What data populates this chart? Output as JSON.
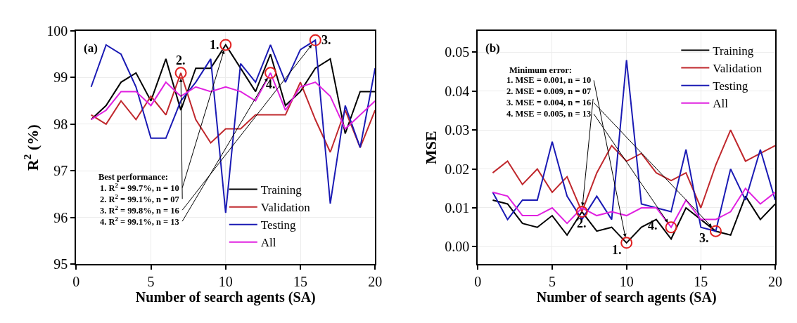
{
  "chart_data": [
    {
      "type": "line",
      "xlabel": "Number of search agents (SA)",
      "ylabel": "R$^{2}$ (%)",
      "xlim": [
        0,
        20
      ],
      "xticks": [
        0,
        5,
        10,
        15,
        20
      ],
      "ylim": [
        95,
        100
      ],
      "yticks": [
        95,
        96,
        97,
        98,
        99,
        100
      ],
      "grid": true,
      "legend": "bottom",
      "x": [
        1,
        2,
        3,
        4,
        5,
        6,
        7,
        8,
        9,
        10,
        11,
        12,
        13,
        14,
        15,
        16,
        17,
        18,
        19,
        20
      ],
      "series": [
        {
          "name": "Training",
          "color": "#000000",
          "values": [
            98.1,
            98.4,
            98.9,
            99.1,
            98.5,
            99.4,
            98.3,
            99.2,
            99.2,
            99.7,
            99.2,
            98.7,
            99.5,
            98.4,
            98.7,
            99.2,
            99.4,
            97.8,
            98.7,
            98.7
          ]
        },
        {
          "name": "Validation",
          "color": "#c0282d",
          "values": [
            98.2,
            98.0,
            98.5,
            98.1,
            98.6,
            98.2,
            99.1,
            98.1,
            97.6,
            97.9,
            97.9,
            98.2,
            98.2,
            98.2,
            98.9,
            98.1,
            97.4,
            98.3,
            97.5,
            98.3
          ]
        },
        {
          "name": "Testing",
          "color": "#1a1ab4",
          "values": [
            98.8,
            99.7,
            99.5,
            98.8,
            97.7,
            97.7,
            98.5,
            98.9,
            99.4,
            96.1,
            99.3,
            98.9,
            99.7,
            98.9,
            99.6,
            99.8,
            96.3,
            98.4,
            97.5,
            99.2
          ]
        },
        {
          "name": "All",
          "color": "#e020e0",
          "values": [
            98.1,
            98.3,
            98.7,
            98.7,
            98.4,
            98.9,
            98.6,
            98.8,
            98.7,
            98.8,
            98.7,
            98.5,
            99.1,
            98.3,
            98.8,
            98.9,
            98.6,
            97.9,
            98.2,
            98.5
          ]
        },
        {
          "type": "scatter",
          "color": "#e02020",
          "marker": "circle",
          "x": [
            10,
            7,
            16,
            13
          ],
          "values": [
            99.7,
            99.1,
            99.8,
            99.1
          ]
        }
      ],
      "annotations": [
        "(a)",
        "Best performance:",
        {
          "text": "1. R$^{2}$ = 99.7%, n = 10",
          "x": 10,
          "y": 99.7
        },
        {
          "text": "2. R$^{2}$ = 99.1%, n = 07",
          "x": 7,
          "y": 99.1
        },
        {
          "text": "3. R$^{2}$ = 99.8%, n = 16",
          "x": 16,
          "y": 99.8
        },
        {
          "text": "4. R$^{2}$ = 99.1%, n = 13",
          "x": 13,
          "y": 99.1
        },
        {
          "text": "1.",
          "x": 10,
          "y": 99.7
        },
        {
          "text": "2.",
          "x": 7,
          "y": 99.1
        },
        {
          "text": "3.",
          "x": 16,
          "y": 99.8
        },
        {
          "text": "4.",
          "x": 13,
          "y": 99.1
        }
      ]
    },
    {
      "type": "line",
      "xlabel": "Number of search agents (SA)",
      "ylabel": "MSE",
      "xlim": [
        0,
        20
      ],
      "xticks": [
        0,
        5,
        10,
        15,
        20
      ],
      "ylim": [
        -0.0045,
        0.0555
      ],
      "yticks": [
        {
          "value": 0,
          "label": "0.00"
        },
        {
          "value": 0.01,
          "label": "0.01"
        },
        {
          "value": 0.02,
          "label": "0.02"
        },
        {
          "value": 0.03,
          "label": "0.03"
        },
        {
          "value": 0.04,
          "label": "0.04"
        },
        {
          "value": 0.05,
          "label": "0.05"
        }
      ],
      "grid": true,
      "legend": "top right",
      "x": [
        1,
        2,
        3,
        4,
        5,
        6,
        7,
        8,
        9,
        10,
        11,
        12,
        13,
        14,
        15,
        16,
        17,
        18,
        19,
        20
      ],
      "series": [
        {
          "name": "Training",
          "color": "#000000",
          "values": [
            0.012,
            0.011,
            0.006,
            0.005,
            0.008,
            0.003,
            0.009,
            0.004,
            0.005,
            0.001,
            0.005,
            0.007,
            0.002,
            0.01,
            0.007,
            0.004,
            0.003,
            0.013,
            0.007,
            0.011
          ]
        },
        {
          "name": "Validation",
          "color": "#c0282d",
          "values": [
            0.019,
            0.022,
            0.016,
            0.02,
            0.014,
            0.018,
            0.009,
            0.019,
            0.026,
            0.022,
            0.024,
            0.019,
            0.017,
            0.019,
            0.01,
            0.021,
            0.03,
            0.022,
            0.024,
            0.026
          ]
        },
        {
          "name": "Testing",
          "color": "#1a1ab4",
          "values": [
            0.014,
            0.007,
            0.012,
            0.012,
            0.027,
            0.013,
            0.007,
            0.013,
            0.007,
            0.048,
            0.011,
            0.01,
            0.009,
            0.025,
            0.005,
            0.004,
            0.02,
            0.012,
            0.025,
            0.012
          ]
        },
        {
          "name": "All",
          "color": "#e020e0",
          "values": [
            0.014,
            0.013,
            0.008,
            0.008,
            0.01,
            0.006,
            0.01,
            0.008,
            0.009,
            0.008,
            0.01,
            0.01,
            0.005,
            0.012,
            0.007,
            0.007,
            0.009,
            0.015,
            0.011,
            0.014
          ]
        },
        {
          "type": "scatter",
          "color": "#e02020",
          "marker": "circle",
          "x": [
            10,
            7,
            16,
            13
          ],
          "values": [
            0.001,
            0.009,
            0.004,
            0.005
          ]
        }
      ],
      "annotations": [
        "(b)",
        "Minimum error:",
        {
          "text": "1. MSE = 0.001, n = 10",
          "x": 10,
          "y": 0.001
        },
        {
          "text": "2. MSE = 0.009, n = 07",
          "x": 7,
          "y": 0.009
        },
        {
          "text": "3. MSE = 0.004, n = 16",
          "x": 16,
          "y": 0.004
        },
        {
          "text": "4. MSE = 0.005, n = 13",
          "x": 13,
          "y": 0.005
        },
        {
          "text": "1.",
          "x": 10,
          "y": 0.001
        },
        {
          "text": "2.",
          "x": 7,
          "y": 0.009
        },
        {
          "text": "3.",
          "x": 16,
          "y": 0.004
        },
        {
          "text": "4.",
          "x": 13,
          "y": 0.005
        }
      ]
    }
  ]
}
